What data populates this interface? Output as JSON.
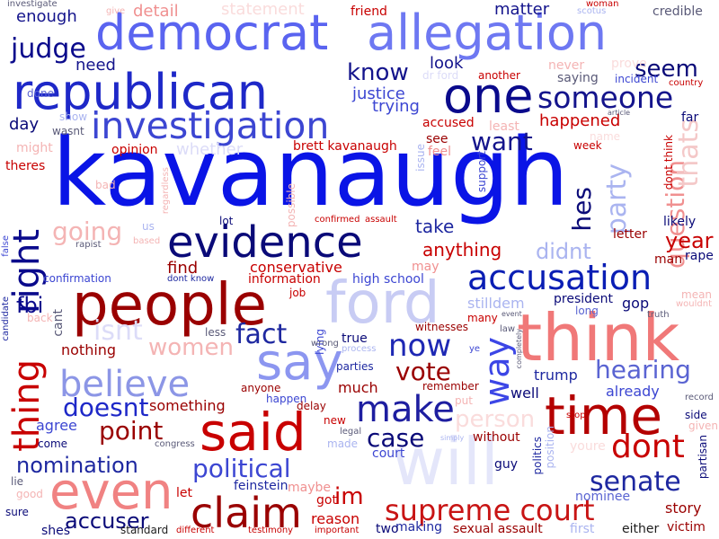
{
  "words": [
    {
      "text": "kavanaugh",
      "color": "#0a14e6"
    },
    {
      "text": "democrat",
      "color": "#5a64f0"
    },
    {
      "text": "allegation",
      "color": "#6e78f2"
    },
    {
      "text": "republican",
      "color": "#1e28c8"
    },
    {
      "text": "one",
      "color": "#0a0a8c"
    },
    {
      "text": "investigation",
      "color": "#3c46d2"
    },
    {
      "text": "someone",
      "color": "#14148c"
    },
    {
      "text": "evidence",
      "color": "#0a0a78"
    },
    {
      "text": "people",
      "color": "#9a0000"
    },
    {
      "text": "think",
      "color": "#f07878"
    },
    {
      "text": "ford",
      "color": "#c8ccf4"
    },
    {
      "text": "say",
      "color": "#8c96f0"
    },
    {
      "text": "said",
      "color": "#c80000"
    },
    {
      "text": "time",
      "color": "#b40000"
    },
    {
      "text": "even",
      "color": "#f08282"
    },
    {
      "text": "will",
      "color": "#e4e6fa"
    },
    {
      "text": "claim",
      "color": "#9a0000"
    },
    {
      "text": "make",
      "color": "#1e1ea0"
    },
    {
      "text": "believe",
      "color": "#8c96e6"
    },
    {
      "text": "accusation",
      "color": "#0a1eb4"
    },
    {
      "text": "supreme court",
      "color": "#c81414"
    },
    {
      "text": "thing",
      "color": "#c80000"
    },
    {
      "text": "right",
      "color": "#0a0a8c"
    },
    {
      "text": "way",
      "color": "#3c46e6"
    },
    {
      "text": "dont",
      "color": "#c80000"
    },
    {
      "text": "now",
      "color": "#1e28b4"
    },
    {
      "text": "know",
      "color": "#14148c"
    },
    {
      "text": "seem",
      "color": "#0a0a78"
    },
    {
      "text": "judge",
      "color": "#0a0a8c"
    },
    {
      "text": "want",
      "color": "#14148c"
    },
    {
      "text": "political",
      "color": "#3c46d2"
    },
    {
      "text": "nomination",
      "color": "#1e28a0"
    },
    {
      "text": "accuser",
      "color": "#0a0a78"
    },
    {
      "text": "senate",
      "color": "#1e28a0"
    },
    {
      "text": "hearing",
      "color": "#5a64d2"
    },
    {
      "text": "question",
      "color": "#f09090"
    },
    {
      "text": "thats",
      "color": "#f4c8c8"
    },
    {
      "text": "party",
      "color": "#aab4f0"
    },
    {
      "text": "fact",
      "color": "#1e28a0"
    },
    {
      "text": "vote",
      "color": "#9a0000"
    },
    {
      "text": "case",
      "color": "#0a0a78"
    },
    {
      "text": "point",
      "color": "#9a0000"
    },
    {
      "text": "doesnt",
      "color": "#1e28c8"
    },
    {
      "text": "person",
      "color": "#fadcdc"
    },
    {
      "text": "im",
      "color": "#c80000"
    },
    {
      "text": "going",
      "color": "#f4b4b4"
    },
    {
      "text": "didnt",
      "color": "#aab4f0"
    },
    {
      "text": "hes",
      "color": "#0a0a78"
    },
    {
      "text": "women",
      "color": "#f4b4b4"
    },
    {
      "text": "isnt",
      "color": "#dcdcf8"
    },
    {
      "text": "year",
      "color": "#c80000"
    },
    {
      "text": "fbi",
      "color": "#0a0a8c"
    },
    {
      "text": "anything",
      "color": "#c80000"
    },
    {
      "text": "take",
      "color": "#1e28a0"
    },
    {
      "text": "need",
      "color": "#14148c"
    },
    {
      "text": "enough",
      "color": "#14148c"
    },
    {
      "text": "matter",
      "color": "#14148c"
    },
    {
      "text": "detail",
      "color": "#f09090"
    },
    {
      "text": "statement",
      "color": "#fadcdc"
    },
    {
      "text": "friend",
      "color": "#c80000"
    },
    {
      "text": "credible",
      "color": "#5a5a78"
    },
    {
      "text": "look",
      "color": "#14148c"
    },
    {
      "text": "justice",
      "color": "#3c46d2"
    },
    {
      "text": "trying",
      "color": "#3c46d2"
    },
    {
      "text": "happened",
      "color": "#c80000"
    },
    {
      "text": "accused",
      "color": "#c80000"
    },
    {
      "text": "least",
      "color": "#f4b4b4"
    },
    {
      "text": "saying",
      "color": "#5a5a78"
    },
    {
      "text": "incident",
      "color": "#3c46d2"
    },
    {
      "text": "never",
      "color": "#f4b4b4"
    },
    {
      "text": "prove",
      "color": "#fadcdc"
    },
    {
      "text": "far",
      "color": "#0a0a78"
    },
    {
      "text": "day",
      "color": "#0a0a78"
    },
    {
      "text": "whether",
      "color": "#dcdcf8"
    },
    {
      "text": "opinion",
      "color": "#c80000"
    },
    {
      "text": "might",
      "color": "#f4b4b4"
    },
    {
      "text": "theres",
      "color": "#c80000"
    },
    {
      "text": "brett kavanaugh",
      "color": "#c80000"
    },
    {
      "text": "see",
      "color": "#9a0000"
    },
    {
      "text": "feel",
      "color": "#f09090"
    },
    {
      "text": "issue",
      "color": "#aab4f0"
    },
    {
      "text": "support",
      "color": "#3c46d2"
    },
    {
      "text": "week",
      "color": "#c80000"
    },
    {
      "text": "name",
      "color": "#fadcdc"
    },
    {
      "text": "dont think",
      "color": "#c80000"
    },
    {
      "text": "wasnt",
      "color": "#5a5a78"
    },
    {
      "text": "show",
      "color": "#aab4f0"
    },
    {
      "text": "bad",
      "color": "#f4b4b4"
    },
    {
      "text": "find",
      "color": "#9a0000"
    },
    {
      "text": "conservative",
      "color": "#c80000"
    },
    {
      "text": "information",
      "color": "#c80000"
    },
    {
      "text": "high school",
      "color": "#3c46d2"
    },
    {
      "text": "may",
      "color": "#f09090"
    },
    {
      "text": "stilldem",
      "color": "#aab4f0"
    },
    {
      "text": "president",
      "color": "#0a0a78"
    },
    {
      "text": "gop",
      "color": "#0a0a78"
    },
    {
      "text": "long",
      "color": "#5a64d2"
    },
    {
      "text": "man",
      "color": "#9a0000"
    },
    {
      "text": "rape",
      "color": "#0a0a78"
    },
    {
      "text": "likely",
      "color": "#0a0a78"
    },
    {
      "text": "letter",
      "color": "#9a0000"
    },
    {
      "text": "lot",
      "color": "#0a0a78"
    },
    {
      "text": "confirmation",
      "color": "#3c46d2"
    },
    {
      "text": "cant",
      "color": "#5a5a78"
    },
    {
      "text": "nothing",
      "color": "#9a0000"
    },
    {
      "text": "less",
      "color": "#5a5a78"
    },
    {
      "text": "true",
      "color": "#0a0a78"
    },
    {
      "text": "witnesses",
      "color": "#9a0000"
    },
    {
      "text": "many",
      "color": "#c80000"
    },
    {
      "text": "mean",
      "color": "#f4b4b4"
    },
    {
      "text": "truth",
      "color": "#5a5a78"
    },
    {
      "text": "parties",
      "color": "#1e28a0"
    },
    {
      "text": "much",
      "color": "#9a0000"
    },
    {
      "text": "remember",
      "color": "#9a0000"
    },
    {
      "text": "trump",
      "color": "#1e28a0"
    },
    {
      "text": "already",
      "color": "#3c46d2"
    },
    {
      "text": "anyone",
      "color": "#9a0000"
    },
    {
      "text": "happen",
      "color": "#3c46d2"
    },
    {
      "text": "well",
      "color": "#0a0a78"
    },
    {
      "text": "something",
      "color": "#9a0000"
    },
    {
      "text": "agree",
      "color": "#3c46d2"
    },
    {
      "text": "come",
      "color": "#0a0a78"
    },
    {
      "text": "side",
      "color": "#0a0a78"
    },
    {
      "text": "record",
      "color": "#5a5a78"
    },
    {
      "text": "stop",
      "color": "#c80000"
    },
    {
      "text": "delay",
      "color": "#9a0000"
    },
    {
      "text": "new",
      "color": "#c80000"
    },
    {
      "text": "without",
      "color": "#9a0000"
    },
    {
      "text": "court",
      "color": "#3c46d2"
    },
    {
      "text": "made",
      "color": "#aab4f0"
    },
    {
      "text": "legal",
      "color": "#5a5a78"
    },
    {
      "text": "politics",
      "color": "#1e28a0"
    },
    {
      "text": "position",
      "color": "#aab4f0"
    },
    {
      "text": "youre",
      "color": "#fadcdc"
    },
    {
      "text": "guy",
      "color": "#0a0a78"
    },
    {
      "text": "partisan",
      "color": "#0a0a78"
    },
    {
      "text": "lie",
      "color": "#5a5a78"
    },
    {
      "text": "good",
      "color": "#f4b4b4"
    },
    {
      "text": "let",
      "color": "#c80000"
    },
    {
      "text": "feinstein",
      "color": "#1e28a0"
    },
    {
      "text": "maybe",
      "color": "#f09090"
    },
    {
      "text": "got",
      "color": "#c80000"
    },
    {
      "text": "reason",
      "color": "#c80000"
    },
    {
      "text": "nominee",
      "color": "#5a64d2"
    },
    {
      "text": "story",
      "color": "#9a0000"
    },
    {
      "text": "sure",
      "color": "#0a0a78"
    },
    {
      "text": "shes",
      "color": "#0a0a78"
    },
    {
      "text": "standard",
      "color": "#1e1e1e"
    },
    {
      "text": "making",
      "color": "#1e28a0"
    },
    {
      "text": "two",
      "color": "#0a0a78"
    },
    {
      "text": "sexual assault",
      "color": "#9a0000"
    },
    {
      "text": "first",
      "color": "#aab4f0"
    },
    {
      "text": "either",
      "color": "#1e1e1e"
    },
    {
      "text": "victim",
      "color": "#9a0000"
    },
    {
      "text": "congress",
      "color": "#5a5a78"
    },
    {
      "text": "different",
      "color": "#c80000"
    },
    {
      "text": "testimony",
      "color": "#c80000"
    },
    {
      "text": "important",
      "color": "#c80000"
    },
    {
      "text": "candidate",
      "color": "#1e28a0"
    },
    {
      "text": "lying",
      "color": "#3c46d2"
    },
    {
      "text": "back",
      "color": "#f4b4b4"
    },
    {
      "text": "dont know",
      "color": "#1e28a0"
    },
    {
      "text": "job",
      "color": "#c80000"
    },
    {
      "text": "wrong",
      "color": "#5a5a78"
    },
    {
      "text": "process",
      "color": "#aab4f0"
    },
    {
      "text": "us",
      "color": "#aab4f0"
    },
    {
      "text": "rapist",
      "color": "#5a5a78"
    },
    {
      "text": "confirmed",
      "color": "#c80000"
    },
    {
      "text": "assault",
      "color": "#c80000"
    },
    {
      "text": "possible",
      "color": "#f4b4b4"
    },
    {
      "text": "regardless",
      "color": "#f4b4b4"
    },
    {
      "text": "investigate",
      "color": "#5a5a78"
    },
    {
      "text": "give",
      "color": "#f4b4b4"
    },
    {
      "text": "scotus",
      "color": "#aab4f0"
    },
    {
      "text": "woman",
      "color": "#c80000"
    },
    {
      "text": "country",
      "color": "#c80000"
    },
    {
      "text": "another",
      "color": "#c80000"
    },
    {
      "text": "dr ford",
      "color": "#dcdcf8"
    },
    {
      "text": "done",
      "color": "#5a64d2"
    },
    {
      "text": "article",
      "color": "#5a5a78"
    },
    {
      "text": "false",
      "color": "#3c46d2"
    },
    {
      "text": "based",
      "color": "#f4b4b4"
    },
    {
      "text": "given",
      "color": "#f4b4b4"
    },
    {
      "text": "ye",
      "color": "#3c46d2"
    },
    {
      "text": "law",
      "color": "#5a5a78"
    },
    {
      "text": "event",
      "color": "#5a5a78"
    },
    {
      "text": "completely",
      "color": "#5a5a78"
    },
    {
      "text": "put",
      "color": "#f4b4b4"
    },
    {
      "text": "simply",
      "color": "#aab4f0"
    },
    {
      "text": "wouldnt",
      "color": "#f4b4b4"
    }
  ]
}
